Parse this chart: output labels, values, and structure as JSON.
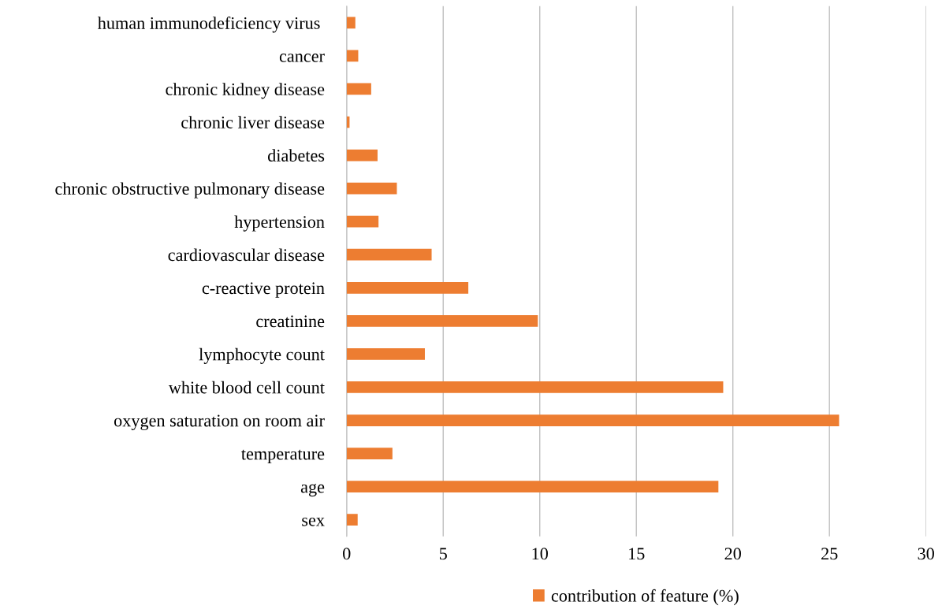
{
  "chart_data": {
    "type": "bar",
    "orientation": "horizontal",
    "categories": [
      "human immunodeficiency virus ",
      "cancer",
      "chronic kidney disease",
      "chronic liver disease",
      "diabetes",
      "chronic obstructive pulmonary disease",
      "hypertension",
      "cardiovascular disease",
      "c-reactive protein",
      "creatinine",
      "lymphocyte count",
      "white blood cell count",
      "oxygen saturation on room air",
      "temperature",
      "age",
      "sex"
    ],
    "series": [
      {
        "name": "contribution of feature (%)",
        "color": "#ed7d31",
        "values": [
          0.45,
          0.6,
          1.27,
          0.15,
          1.6,
          2.6,
          1.65,
          4.4,
          6.3,
          9.9,
          4.05,
          19.5,
          25.5,
          2.37,
          19.25,
          0.57
        ]
      }
    ],
    "xlim": [
      0,
      30
    ],
    "xticks": [
      0,
      5,
      10,
      15,
      20,
      25,
      30
    ],
    "grid": "x",
    "legend": "bottom"
  }
}
